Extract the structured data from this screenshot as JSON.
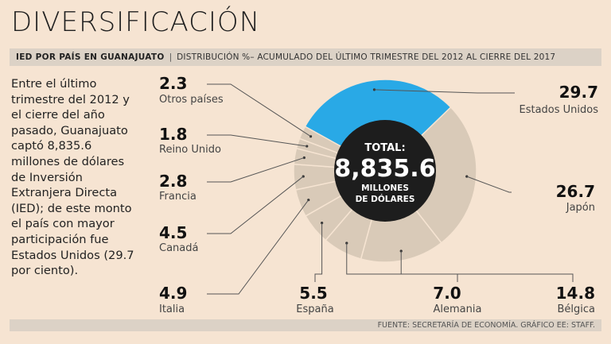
{
  "header": {
    "title": "DIVERSIFICACIÓN",
    "subtitle_key": "IED POR PAÍS EN GUANAJUATO",
    "subtitle_desc": "DISTRIBUCIÓN %– ACUMULADO DEL ÚLTIMO TRIMESTRE DEL 2012 AL CIERRE DEL 2017"
  },
  "intro": "Entre el último trimestre del 2012 y el cierre del año pasado, Guanajuato captó 8,835.6 millones de dólares de Inversión Extranjera Directa (IED); de este monto el país con mayor participación fue Estados Unidos (29.7 por ciento).",
  "center": {
    "line1": "TOTAL:",
    "line2": "8,835.6",
    "line3": "MILLONES",
    "line4": "DE DÓLARES"
  },
  "footer": "FUENTE: SECRETARÍA DE ECONOMÍA. GRÁFICO EE: STAFF.",
  "colors": {
    "highlight": "#29a9e6",
    "segment": "#d9cab8",
    "center": "#1d1d1d",
    "background": "#f6e4d2"
  },
  "chart_data": {
    "type": "pie",
    "style": "donut",
    "unit": "%",
    "highlight_series": "Estados Unidos",
    "slices": [
      {
        "name": "Estados Unidos",
        "value": 29.7,
        "value_label": "29.7"
      },
      {
        "name": "Japón",
        "value": 26.7,
        "value_label": "26.7"
      },
      {
        "name": "Bélgica",
        "value": 14.8,
        "value_label": "14.8"
      },
      {
        "name": "Alemania",
        "value": 7.0,
        "value_label": "7.0"
      },
      {
        "name": "España",
        "value": 5.5,
        "value_label": "5.5"
      },
      {
        "name": "Italia",
        "value": 4.9,
        "value_label": "4.9"
      },
      {
        "name": "Canadá",
        "value": 4.5,
        "value_label": "4.5"
      },
      {
        "name": "Francia",
        "value": 2.8,
        "value_label": "2.8"
      },
      {
        "name": "Reino Unido",
        "value": 1.8,
        "value_label": "1.8"
      },
      {
        "name": "Otros países",
        "value": 2.3,
        "value_label": "2.3"
      }
    ]
  }
}
